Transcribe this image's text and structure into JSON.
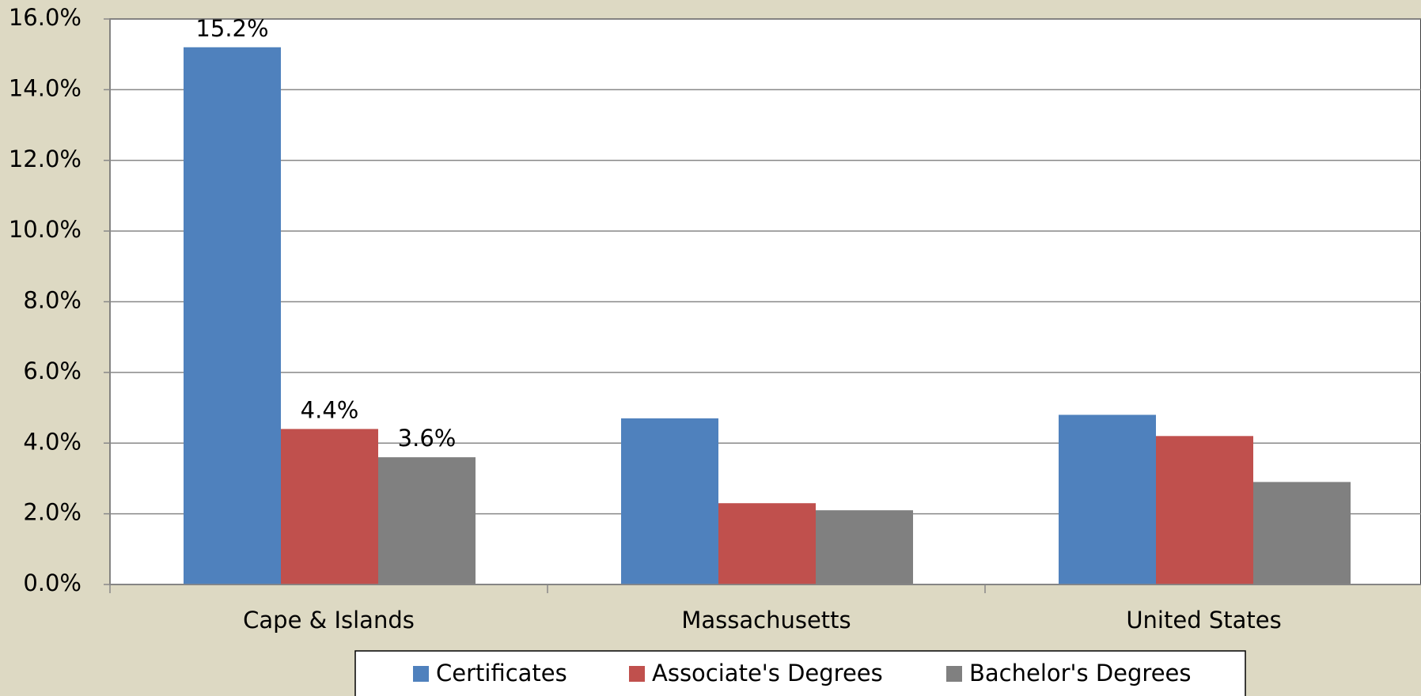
{
  "chart_data": {
    "type": "bar",
    "categories": [
      "Cape & Islands",
      "Massachusetts",
      "United States"
    ],
    "series": [
      {
        "name": "Certificates",
        "color": "#4f81bd",
        "values": [
          15.2,
          4.7,
          4.8
        ],
        "value_labels": [
          "15.2%",
          null,
          null
        ]
      },
      {
        "name": "Associate's Degrees",
        "color": "#c0504d",
        "values": [
          4.4,
          2.3,
          4.2
        ],
        "value_labels": [
          "4.4%",
          null,
          null
        ]
      },
      {
        "name": "Bachelor's Degrees",
        "color": "#808080",
        "values": [
          3.6,
          2.1,
          2.9
        ],
        "value_labels": [
          "3.6%",
          null,
          null
        ]
      }
    ],
    "ylim": [
      0,
      16
    ],
    "yticks": [
      {
        "value": 0,
        "label": "0.0%"
      },
      {
        "value": 2,
        "label": "2.0%"
      },
      {
        "value": 4,
        "label": "4.0%"
      },
      {
        "value": 6,
        "label": "6.0%"
      },
      {
        "value": 8,
        "label": "8.0%"
      },
      {
        "value": 10,
        "label": "10.0%"
      },
      {
        "value": 12,
        "label": "12.0%"
      },
      {
        "value": 14,
        "label": "14.0%"
      },
      {
        "value": 16,
        "label": "16.0%"
      }
    ],
    "grid": true,
    "legend": "bottom"
  }
}
